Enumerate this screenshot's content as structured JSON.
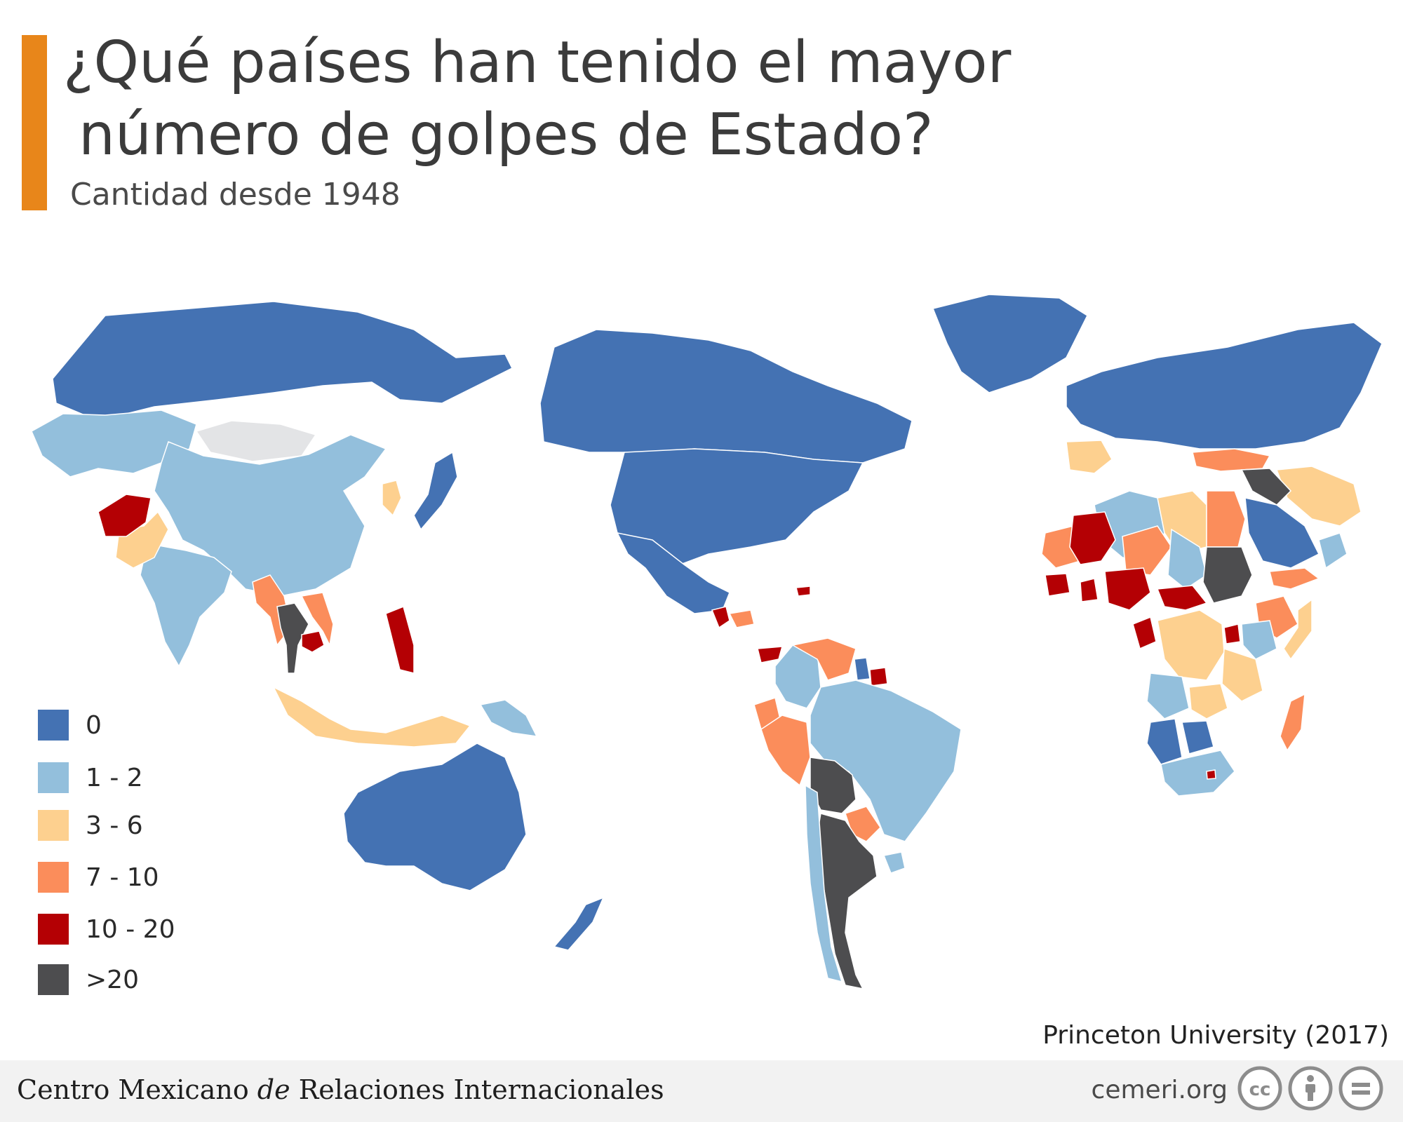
{
  "header": {
    "title_line1": "¿Qué países han tenido el mayor",
    "title_line2": "número de golpes de Estado?",
    "subtitle": "Cantidad desde 1948",
    "accent_color": "#e8861a"
  },
  "legend": {
    "items": [
      {
        "label": "0",
        "color": "#4472b3"
      },
      {
        "label": "1 - 2",
        "color": "#93bfdc"
      },
      {
        "label": "3 - 6",
        "color": "#fdd08f"
      },
      {
        "label": "7 - 10",
        "color": "#fb8d5b"
      },
      {
        "label": "10 - 20",
        "color": "#b40004"
      },
      {
        "label": ">20",
        "color": "#4d4d4f"
      }
    ]
  },
  "map": {
    "no_data_color": "#e3e4e6",
    "regions": [
      {
        "name": "Russia / Northern Asia",
        "category": "0"
      },
      {
        "name": "Central Asia",
        "category": "1 - 2"
      },
      {
        "name": "Mongolia",
        "category": "no data"
      },
      {
        "name": "China",
        "category": "1 - 2"
      },
      {
        "name": "Japan",
        "category": "0"
      },
      {
        "name": "Korea",
        "category": "3 - 6"
      },
      {
        "name": "India",
        "category": "1 - 2"
      },
      {
        "name": "Pakistan",
        "category": "3 - 6"
      },
      {
        "name": "Afghanistan",
        "category": "10 - 20"
      },
      {
        "name": "Myanmar",
        "category": "7 - 10"
      },
      {
        "name": "Thailand",
        "category": ">20"
      },
      {
        "name": "Cambodia",
        "category": "10 - 20"
      },
      {
        "name": "Vietnam",
        "category": "7 - 10"
      },
      {
        "name": "Philippines",
        "category": "10 - 20"
      },
      {
        "name": "Indonesia",
        "category": "3 - 6"
      },
      {
        "name": "Papua New Guinea",
        "category": "1 - 2"
      },
      {
        "name": "Australia",
        "category": "0"
      },
      {
        "name": "New Zealand",
        "category": "0"
      },
      {
        "name": "Greenland",
        "category": "0"
      },
      {
        "name": "Canada",
        "category": "0"
      },
      {
        "name": "United States",
        "category": "0"
      },
      {
        "name": "Mexico",
        "category": "0"
      },
      {
        "name": "Guatemala",
        "category": "10 - 20"
      },
      {
        "name": "Honduras",
        "category": "7 - 10"
      },
      {
        "name": "Panama",
        "category": "10 - 20"
      },
      {
        "name": "Haiti",
        "category": "10 - 20"
      },
      {
        "name": "Colombia",
        "category": "1 - 2"
      },
      {
        "name": "Venezuela",
        "category": "7 - 10"
      },
      {
        "name": "Guyana",
        "category": "0"
      },
      {
        "name": "Suriname",
        "category": "10 - 20"
      },
      {
        "name": "Ecuador",
        "category": "7 - 10"
      },
      {
        "name": "Peru",
        "category": "7 - 10"
      },
      {
        "name": "Brazil",
        "category": "1 - 2"
      },
      {
        "name": "Bolivia",
        "category": ">20"
      },
      {
        "name": "Paraguay",
        "category": "7 - 10"
      },
      {
        "name": "Argentina",
        "category": ">20"
      },
      {
        "name": "Chile",
        "category": "1 - 2"
      },
      {
        "name": "Uruguay",
        "category": "1 - 2"
      },
      {
        "name": "Western Europe",
        "category": "0"
      },
      {
        "name": "Spain / Portugal",
        "category": "3 - 6"
      },
      {
        "name": "Turkey",
        "category": "7 - 10"
      },
      {
        "name": "Iran",
        "category": "3 - 6"
      },
      {
        "name": "Syria / Iraq",
        "category": ">20"
      },
      {
        "name": "Saudi Arabia",
        "category": "0"
      },
      {
        "name": "Yemen",
        "category": "7 - 10"
      },
      {
        "name": "Oman",
        "category": "1 - 2"
      },
      {
        "name": "Algeria",
        "category": "1 - 2"
      },
      {
        "name": "Libya",
        "category": "3 - 6"
      },
      {
        "name": "Egypt",
        "category": "7 - 10"
      },
      {
        "name": "Mauritania",
        "category": "7 - 10"
      },
      {
        "name": "Mali",
        "category": "10 - 20"
      },
      {
        "name": "Niger",
        "category": "7 - 10"
      },
      {
        "name": "Chad",
        "category": "1 - 2"
      },
      {
        "name": "Sudan",
        "category": ">20"
      },
      {
        "name": "Ethiopia",
        "category": "7 - 10"
      },
      {
        "name": "Somalia",
        "category": "3 - 6"
      },
      {
        "name": "Sierra Leone",
        "category": "10 - 20"
      },
      {
        "name": "Ghana",
        "category": "10 - 20"
      },
      {
        "name": "Nigeria",
        "category": "10 - 20"
      },
      {
        "name": "Central African Republic",
        "category": "10 - 20"
      },
      {
        "name": "Congo",
        "category": "10 - 20"
      },
      {
        "name": "Burundi",
        "category": "10 - 20"
      },
      {
        "name": "Kenya",
        "category": "1 - 2"
      },
      {
        "name": "DR Congo",
        "category": "3 - 6"
      },
      {
        "name": "Tanzania",
        "category": "3 - 6"
      },
      {
        "name": "Angola",
        "category": "1 - 2"
      },
      {
        "name": "Zambia",
        "category": "3 - 6"
      },
      {
        "name": "Namibia",
        "category": "0"
      },
      {
        "name": "Botswana",
        "category": "0"
      },
      {
        "name": "South Africa",
        "category": "1 - 2"
      },
      {
        "name": "Lesotho",
        "category": "10 - 20"
      },
      {
        "name": "Madagascar",
        "category": "7 - 10"
      }
    ]
  },
  "source": "Princeton University (2017)",
  "footer": {
    "org_before": "Centro Mexicano ",
    "org_italic": "de",
    "org_after": " Relaciones Internacionales",
    "site": "cemeri.org",
    "license_icons": [
      "cc-icon",
      "by-icon",
      "nd-icon"
    ]
  }
}
